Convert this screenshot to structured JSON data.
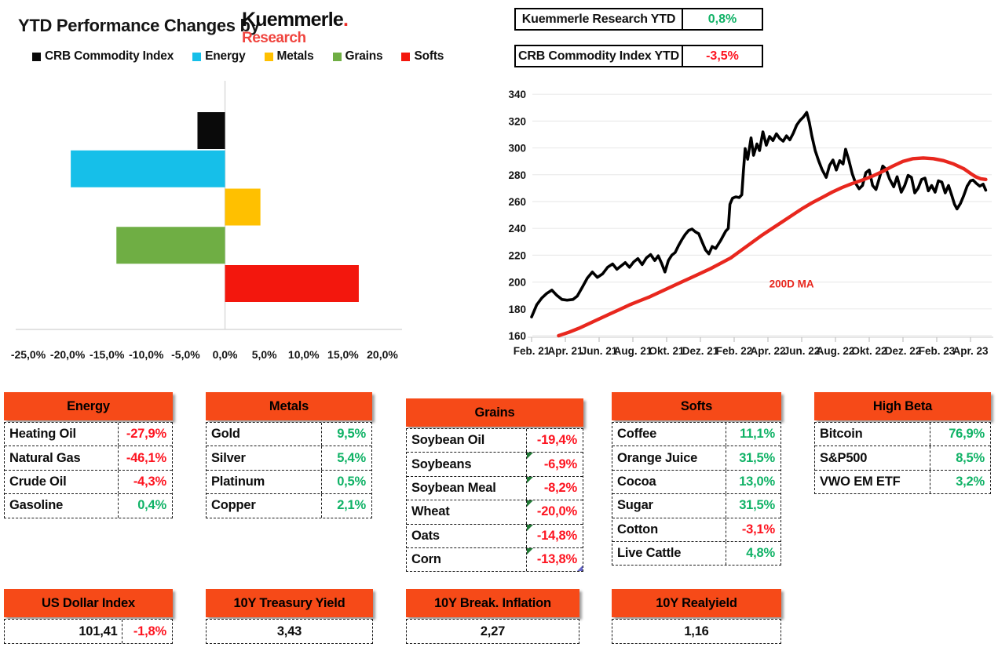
{
  "header": {
    "title": "YTD Performance Changes by",
    "logo_line1": "Kuemmerle",
    "logo_dot": ".",
    "logo_line2": "Research"
  },
  "legend": [
    {
      "label": "CRB Commodity Index",
      "color": "#0a0a0a"
    },
    {
      "label": "Energy",
      "color": "#16bfe9"
    },
    {
      "label": "Metals",
      "color": "#ffc000"
    },
    {
      "label": "Grains",
      "color": "#6fae44"
    },
    {
      "label": "Softs",
      "color": "#f3170d"
    }
  ],
  "summary_boxes": [
    {
      "label": "Kuemmerle Research YTD",
      "value": "0,8%",
      "tone": "pos"
    },
    {
      "label": "CRB Commodity Index YTD",
      "value": "-3,5%",
      "tone": "neg"
    }
  ],
  "chart_data": [
    {
      "type": "bar",
      "orientation": "horizontal",
      "title": "YTD Performance Changes",
      "categories": [
        "CRB Commodity Index",
        "Energy",
        "Metals",
        "Grains",
        "Softs"
      ],
      "values": [
        -3.5,
        -19.6,
        4.5,
        -13.8,
        17.0
      ],
      "colors": [
        "#0a0a0a",
        "#16bfe9",
        "#ffc000",
        "#6fae44",
        "#f3170d"
      ],
      "xlim": [
        -25,
        20
      ],
      "x_tick_values": [
        -25,
        -20,
        -15,
        -10,
        -5,
        0,
        5,
        10,
        15,
        20
      ],
      "x_tick_labels": [
        "-25,0%",
        "-20,0%",
        "-15,0%",
        "-10,0%",
        "-5,0%",
        "0,0%",
        "5,0%",
        "10,0%",
        "15,0%",
        "20,0%"
      ],
      "grid": false
    },
    {
      "type": "line",
      "ylim": [
        160,
        340
      ],
      "y_ticks": [
        160,
        180,
        200,
        220,
        240,
        260,
        280,
        300,
        320,
        340
      ],
      "x_unit": "months since Feb 2021",
      "x_tick_months": [
        0,
        2,
        4,
        6,
        8,
        10,
        12,
        14,
        16,
        18,
        20,
        22,
        24,
        26
      ],
      "x_tick_labels": [
        "Feb. 21",
        "Apr. 21",
        "Jun. 21",
        "Aug. 21",
        "Okt. 21",
        "Dez. 21",
        "Feb. 22",
        "Apr. 22",
        "Jun. 22",
        "Aug. 22",
        "Okt. 22",
        "Dez. 22",
        "Feb. 23",
        "Apr. 23"
      ],
      "annotation": {
        "text": "200D MA",
        "x_month": 15.4,
        "y_value": 196,
        "color": "#e8271e"
      },
      "grid": true,
      "series": [
        {
          "name": "CRB Commodity Index",
          "color": "#000000",
          "width": 3.6,
          "points": [
            [
              0,
              174
            ],
            [
              0.3,
              183
            ],
            [
              0.6,
              188
            ],
            [
              0.9,
              191.5
            ],
            [
              1.2,
              194
            ],
            [
              1.5,
              190
            ],
            [
              1.8,
              187
            ],
            [
              2.1,
              186.5
            ],
            [
              2.45,
              187
            ],
            [
              2.7,
              189.5
            ],
            [
              3,
              196
            ],
            [
              3.3,
              203
            ],
            [
              3.6,
              207.5
            ],
            [
              3.9,
              203.5
            ],
            [
              4.2,
              206
            ],
            [
              4.5,
              211
            ],
            [
              4.8,
              213.5
            ],
            [
              5.05,
              209.5
            ],
            [
              5.3,
              212
            ],
            [
              5.55,
              214.5
            ],
            [
              5.8,
              211
            ],
            [
              6.05,
              215
            ],
            [
              6.3,
              217.5
            ],
            [
              6.55,
              213
            ],
            [
              6.8,
              218
            ],
            [
              7.05,
              220.5
            ],
            [
              7.3,
              216
            ],
            [
              7.5,
              219.5
            ],
            [
              7.7,
              214
            ],
            [
              7.9,
              207.5
            ],
            [
              8.1,
              216
            ],
            [
              8.3,
              220
            ],
            [
              8.5,
              222
            ],
            [
              8.7,
              227
            ],
            [
              8.9,
              231.5
            ],
            [
              9.1,
              235.5
            ],
            [
              9.3,
              238.5
            ],
            [
              9.5,
              239.5
            ],
            [
              9.7,
              237.5
            ],
            [
              9.9,
              236
            ],
            [
              10.1,
              230
            ],
            [
              10.3,
              224
            ],
            [
              10.5,
              221
            ],
            [
              10.7,
              226.5
            ],
            [
              10.9,
              225
            ],
            [
              11.05,
              228
            ],
            [
              11.2,
              231
            ],
            [
              11.35,
              234.5
            ],
            [
              11.5,
              238
            ],
            [
              11.65,
              240
            ],
            [
              11.75,
              258
            ],
            [
              11.9,
              262.5
            ],
            [
              12.1,
              263.5
            ],
            [
              12.3,
              263
            ],
            [
              12.45,
              265
            ],
            [
              12.55,
              283
            ],
            [
              12.65,
              299.5
            ],
            [
              12.8,
              291.5
            ],
            [
              13,
              307.5
            ],
            [
              13.15,
              294.5
            ],
            [
              13.35,
              303
            ],
            [
              13.5,
              298
            ],
            [
              13.7,
              312
            ],
            [
              13.9,
              302
            ],
            [
              14.1,
              308.5
            ],
            [
              14.3,
              305.5
            ],
            [
              14.5,
              310.5
            ],
            [
              14.7,
              307
            ],
            [
              14.9,
              305
            ],
            [
              15.1,
              309
            ],
            [
              15.3,
              306
            ],
            [
              15.5,
              311
            ],
            [
              15.7,
              317
            ],
            [
              15.9,
              320.5
            ],
            [
              16.1,
              323
            ],
            [
              16.3,
              326.5
            ],
            [
              16.45,
              319
            ],
            [
              16.6,
              309
            ],
            [
              16.8,
              298
            ],
            [
              17,
              290.5
            ],
            [
              17.2,
              284
            ],
            [
              17.45,
              278
            ],
            [
              17.65,
              287
            ],
            [
              17.85,
              291
            ],
            [
              18.05,
              283.5
            ],
            [
              18.25,
              290.5
            ],
            [
              18.45,
              288
            ],
            [
              18.6,
              299
            ],
            [
              18.8,
              290.5
            ],
            [
              19,
              280.5
            ],
            [
              19.2,
              273.5
            ],
            [
              19.4,
              269.5
            ],
            [
              19.6,
              272
            ],
            [
              19.8,
              281.5
            ],
            [
              20,
              283.5
            ],
            [
              20.2,
              272
            ],
            [
              20.4,
              269
            ],
            [
              20.6,
              277.5
            ],
            [
              20.8,
              286.5
            ],
            [
              21,
              284
            ],
            [
              21.2,
              277
            ],
            [
              21.45,
              271
            ],
            [
              21.65,
              278.5
            ],
            [
              21.9,
              267
            ],
            [
              22.1,
              272
            ],
            [
              22.3,
              279.5
            ],
            [
              22.5,
              278
            ],
            [
              22.7,
              266.5
            ],
            [
              22.9,
              270
            ],
            [
              23.1,
              276.5
            ],
            [
              23.3,
              277.5
            ],
            [
              23.5,
              268
            ],
            [
              23.7,
              272
            ],
            [
              23.9,
              267
            ],
            [
              24.1,
              275.5
            ],
            [
              24.3,
              274.5
            ],
            [
              24.5,
              266.5
            ],
            [
              24.7,
              272
            ],
            [
              24.9,
              264
            ],
            [
              25.05,
              258
            ],
            [
              25.2,
              254.5
            ],
            [
              25.4,
              258.5
            ],
            [
              25.6,
              264.5
            ],
            [
              25.8,
              271.5
            ],
            [
              26,
              275.5
            ],
            [
              26.15,
              276
            ],
            [
              26.35,
              273.5
            ],
            [
              26.55,
              271.5
            ],
            [
              26.75,
              273
            ],
            [
              26.9,
              268.5
            ]
          ]
        },
        {
          "name": "200D MA",
          "color": "#e8271e",
          "width": 4.4,
          "points": [
            [
              1.6,
              160
            ],
            [
              2.2,
              162.5
            ],
            [
              2.8,
              165.5
            ],
            [
              3.4,
              169
            ],
            [
              4,
              172.5
            ],
            [
              4.6,
              176
            ],
            [
              5.2,
              179.5
            ],
            [
              5.8,
              183
            ],
            [
              6.4,
              186
            ],
            [
              7,
              189
            ],
            [
              7.6,
              192.5
            ],
            [
              8.2,
              196
            ],
            [
              8.8,
              199.5
            ],
            [
              9.4,
              203
            ],
            [
              10,
              206.5
            ],
            [
              10.6,
              210
            ],
            [
              11.2,
              214
            ],
            [
              11.8,
              218
            ],
            [
              12.4,
              223.5
            ],
            [
              13,
              229
            ],
            [
              13.6,
              234.5
            ],
            [
              14.2,
              239.5
            ],
            [
              14.8,
              244.5
            ],
            [
              15.4,
              249.5
            ],
            [
              16,
              254.5
            ],
            [
              16.6,
              259
            ],
            [
              17.2,
              263
            ],
            [
              17.8,
              267
            ],
            [
              18.4,
              270.5
            ],
            [
              19,
              273.5
            ],
            [
              19.6,
              276
            ],
            [
              20.2,
              279
            ],
            [
              20.8,
              282.5
            ],
            [
              21.4,
              286.5
            ],
            [
              22,
              290
            ],
            [
              22.6,
              292
            ],
            [
              23.2,
              292.5
            ],
            [
              23.8,
              292
            ],
            [
              24.4,
              290.5
            ],
            [
              25,
              288
            ],
            [
              25.6,
              284.5
            ],
            [
              26,
              281
            ],
            [
              26.3,
              278.5
            ],
            [
              26.6,
              277
            ],
            [
              26.9,
              276.5
            ]
          ]
        }
      ]
    }
  ],
  "tables": [
    {
      "id": "energy",
      "title": "Energy",
      "rows": [
        {
          "label": "Heating Oil",
          "value": "-27,9%",
          "tone": "neg"
        },
        {
          "label": "Natural Gas",
          "value": "-46,1%",
          "tone": "neg"
        },
        {
          "label": "Crude Oil",
          "value": "-4,3%",
          "tone": "neg"
        },
        {
          "label": "Gasoline",
          "value": "0,4%",
          "tone": "pos"
        }
      ]
    },
    {
      "id": "metals",
      "title": "Metals",
      "rows": [
        {
          "label": "Gold",
          "value": "9,5%",
          "tone": "pos"
        },
        {
          "label": "Silver",
          "value": "5,4%",
          "tone": "pos"
        },
        {
          "label": "Platinum",
          "value": "0,5%",
          "tone": "pos"
        },
        {
          "label": "Copper",
          "value": "2,1%",
          "tone": "pos"
        }
      ]
    },
    {
      "id": "grains",
      "title": "Grains",
      "rows": [
        {
          "label": "Soybean Oil",
          "value": "-19,4%",
          "tone": "neg"
        },
        {
          "label": "Soybeans",
          "value": "-6,9%",
          "tone": "neg",
          "marker": true
        },
        {
          "label": "Soybean Meal",
          "value": "-8,2%",
          "tone": "neg",
          "marker": true
        },
        {
          "label": "Wheat",
          "value": "-20,0%",
          "tone": "neg",
          "marker": true
        },
        {
          "label": "Oats",
          "value": "-14,8%",
          "tone": "neg",
          "marker": true
        },
        {
          "label": "Corn",
          "value": "-13,8%",
          "tone": "neg",
          "marker": true,
          "marker2": true
        }
      ]
    },
    {
      "id": "softs",
      "title": "Softs",
      "rows": [
        {
          "label": "Coffee",
          "value": "11,1%",
          "tone": "pos"
        },
        {
          "label": "Orange Juice",
          "value": "31,5%",
          "tone": "pos"
        },
        {
          "label": "Cocoa",
          "value": "13,0%",
          "tone": "pos"
        },
        {
          "label": "Sugar",
          "value": "31,5%",
          "tone": "pos"
        },
        {
          "label": "Cotton",
          "value": "-3,1%",
          "tone": "neg"
        },
        {
          "label": "Live Cattle",
          "value": "4,8%",
          "tone": "pos"
        }
      ]
    },
    {
      "id": "high-beta",
      "title": "High Beta",
      "rows": [
        {
          "label": "Bitcoin",
          "value": "76,9%",
          "tone": "pos"
        },
        {
          "label": "S&P500",
          "value": "8,5%",
          "tone": "pos"
        },
        {
          "label": "VWO EM ETF",
          "value": "3,2%",
          "tone": "pos"
        }
      ]
    }
  ],
  "mini_tables": [
    {
      "id": "us-dollar-index",
      "title": "US Dollar Index",
      "cells": [
        {
          "text": "101,41",
          "tone": "neutral"
        },
        {
          "text": "-1,8%",
          "tone": "neg"
        }
      ]
    },
    {
      "id": "treasury-yield",
      "title": "10Y Treasury Yield",
      "cells": [
        {
          "text": "3,43",
          "tone": "neutral"
        }
      ]
    },
    {
      "id": "break-inflation",
      "title": "10Y Break. Inflation",
      "cells": [
        {
          "text": "2,27",
          "tone": "neutral"
        }
      ]
    },
    {
      "id": "realyield",
      "title": "10Y Realyield",
      "cells": [
        {
          "text": "1,16",
          "tone": "neutral"
        }
      ]
    }
  ],
  "colors": {
    "header_orange": "#f64a18",
    "positive_green": "#10b266",
    "negative_red": "#fd1420",
    "gridline": "#ebebeb",
    "axis": "#d8d8d8",
    "tick": "#c2c2c2",
    "ma_red": "#e8271e"
  }
}
